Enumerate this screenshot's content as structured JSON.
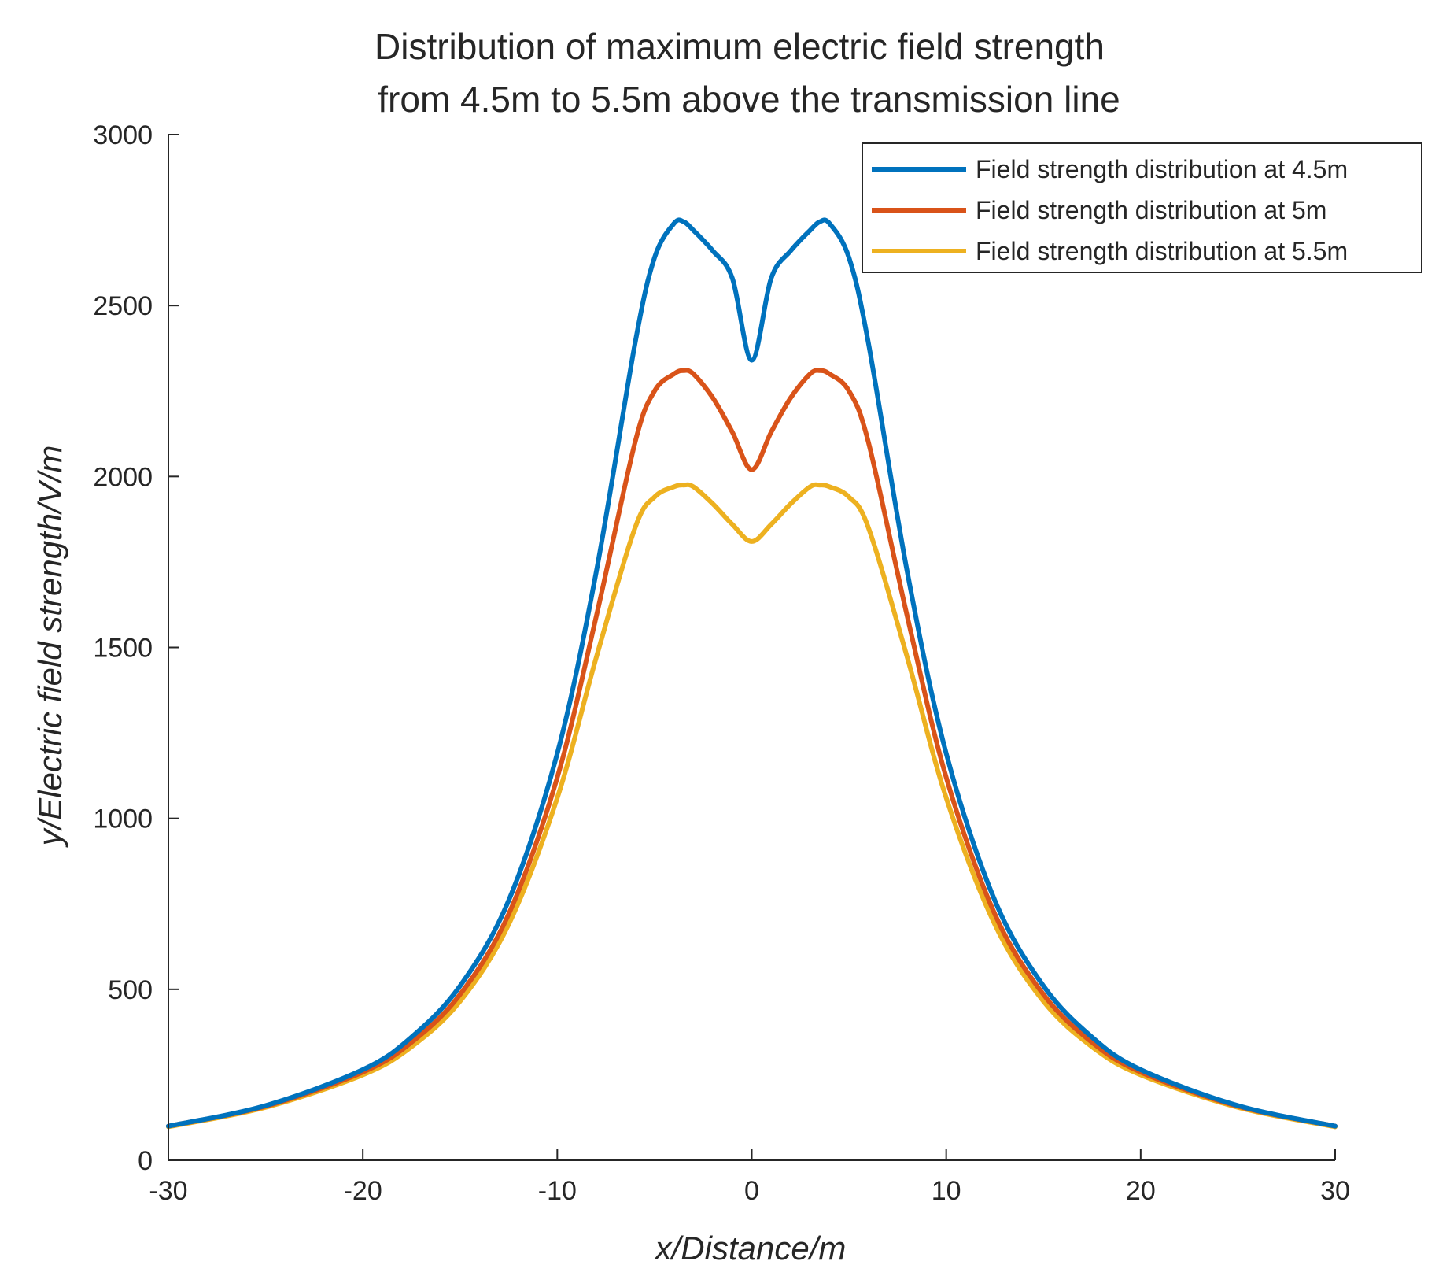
{
  "chart_data": {
    "type": "line",
    "title": [
      "Distribution of maximum electric field strength",
      "from 4.5m to 5.5m above the transmission line"
    ],
    "xlabel": "x/Distance/m",
    "ylabel": "y/Electric field strength/V/m",
    "xlim": [
      -30,
      30
    ],
    "ylim": [
      0,
      3000
    ],
    "xticks": [
      -30,
      -20,
      -10,
      0,
      10,
      20,
      30
    ],
    "yticks": [
      0,
      500,
      1000,
      1500,
      2000,
      2500,
      3000
    ],
    "grid": false,
    "legend_position": "top-right",
    "x": [
      -30,
      -25,
      -20,
      -17.5,
      -15,
      -12.5,
      -10,
      -8,
      -6,
      -5,
      -4,
      -3.5,
      -3,
      -2,
      -1,
      0,
      1,
      2,
      3,
      3.5,
      4,
      5,
      6,
      8,
      10,
      12.5,
      15,
      17.5,
      20,
      25,
      30
    ],
    "series": [
      {
        "name": "Field strength distribution at 4.5m",
        "color": "#0072BD",
        "values": [
          100,
          160,
          265,
          360,
          510,
          760,
          1190,
          1720,
          2390,
          2640,
          2740,
          2745,
          2720,
          2660,
          2580,
          2340,
          2580,
          2660,
          2720,
          2745,
          2740,
          2640,
          2390,
          1720,
          1190,
          760,
          510,
          360,
          265,
          160,
          100
        ]
      },
      {
        "name": "Field strength distribution at 5m",
        "color": "#D95319",
        "values": [
          100,
          158,
          258,
          345,
          485,
          720,
          1120,
          1590,
          2100,
          2250,
          2300,
          2310,
          2300,
          2230,
          2130,
          2020,
          2130,
          2230,
          2300,
          2310,
          2300,
          2250,
          2100,
          1590,
          1120,
          720,
          485,
          345,
          258,
          158,
          100
        ]
      },
      {
        "name": "Field strength distribution at 5.5m",
        "color": "#EDB120",
        "values": [
          98,
          155,
          250,
          332,
          465,
          690,
          1060,
          1470,
          1850,
          1940,
          1970,
          1975,
          1970,
          1920,
          1860,
          1810,
          1860,
          1920,
          1970,
          1975,
          1970,
          1940,
          1850,
          1470,
          1060,
          690,
          465,
          332,
          250,
          155,
          98
        ]
      }
    ]
  }
}
